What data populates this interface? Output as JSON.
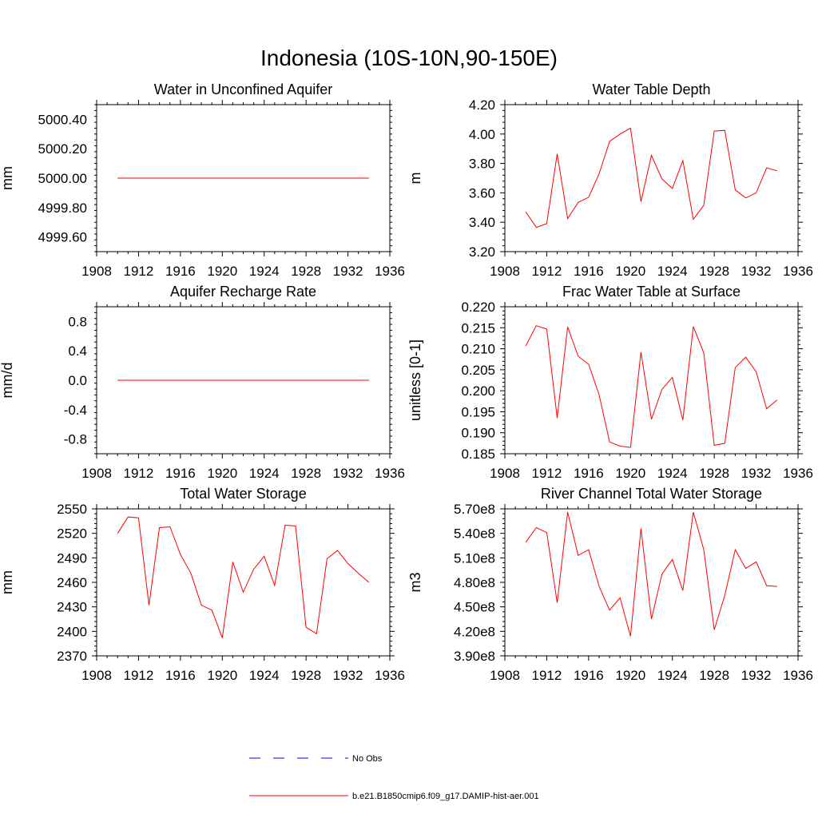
{
  "figure_title": "Indonesia (10S-10N,90-150E)",
  "legend": {
    "items": [
      {
        "label": "No Obs",
        "color": "#0000ff",
        "dashed": true
      },
      {
        "label": "b.e21.B1850cmip6.f09_g17.DAMIP-hist-aer.001",
        "color": "#ff0000",
        "dashed": false
      }
    ]
  },
  "chart_data": [
    {
      "type": "line",
      "title": "Water in Unconfined Aquifer",
      "ylabel": "mm",
      "xlim": [
        1908,
        1936
      ],
      "ylim": [
        4999.5,
        5000.5
      ],
      "x_ticks": [
        1908,
        1912,
        1916,
        1920,
        1924,
        1928,
        1932,
        1936
      ],
      "y_ticks": [
        4999.6,
        4999.8,
        5000.0,
        5000.2,
        5000.4
      ],
      "y_tick_labels": [
        "4999.60",
        "4999.80",
        "5000.00",
        "5000.20",
        "5000.40"
      ],
      "series": [
        {
          "color": "#ff0000",
          "x": [
            1910,
            1911,
            1912,
            1913,
            1914,
            1915,
            1916,
            1917,
            1918,
            1919,
            1920,
            1921,
            1922,
            1923,
            1924,
            1925,
            1926,
            1927,
            1928,
            1929,
            1930,
            1931,
            1932,
            1933,
            1934
          ],
          "values": [
            5000,
            5000,
            5000,
            5000,
            5000,
            5000,
            5000,
            5000,
            5000,
            5000,
            5000,
            5000,
            5000,
            5000,
            5000,
            5000,
            5000,
            5000,
            5000,
            5000,
            5000,
            5000,
            5000,
            5000,
            5000
          ]
        }
      ]
    },
    {
      "type": "line",
      "title": "Water Table Depth",
      "ylabel": "m",
      "xlim": [
        1908,
        1936
      ],
      "ylim": [
        3.2,
        4.2
      ],
      "x_ticks": [
        1908,
        1912,
        1916,
        1920,
        1924,
        1928,
        1932,
        1936
      ],
      "y_ticks": [
        3.2,
        3.4,
        3.6,
        3.8,
        4.0,
        4.2
      ],
      "y_tick_labels": [
        "3.20",
        "3.40",
        "3.60",
        "3.80",
        "4.00",
        "4.20"
      ],
      "series": [
        {
          "color": "#ff0000",
          "x": [
            1910,
            1911,
            1912,
            1913,
            1914,
            1915,
            1916,
            1917,
            1918,
            1919,
            1920,
            1921,
            1922,
            1923,
            1924,
            1925,
            1926,
            1927,
            1928,
            1929,
            1930,
            1931,
            1932,
            1933,
            1934
          ],
          "values": [
            3.47,
            3.365,
            3.39,
            3.865,
            3.425,
            3.535,
            3.57,
            3.73,
            3.95,
            4.0,
            4.04,
            3.54,
            3.855,
            3.695,
            3.63,
            3.82,
            3.42,
            3.515,
            4.02,
            4.025,
            3.62,
            3.565,
            3.6,
            3.77,
            3.75
          ]
        }
      ]
    },
    {
      "type": "line",
      "title": "Aquifer Recharge Rate",
      "ylabel": "mm/d",
      "xlim": [
        1908,
        1936
      ],
      "ylim": [
        -1.0,
        1.0
      ],
      "x_ticks": [
        1908,
        1912,
        1916,
        1920,
        1924,
        1928,
        1932,
        1936
      ],
      "y_ticks": [
        -0.8,
        -0.4,
        0.0,
        0.4,
        0.8
      ],
      "y_tick_labels": [
        "-0.8",
        "-0.4",
        "0.0",
        "0.4",
        "0.8"
      ],
      "series": [
        {
          "color": "#ff0000",
          "x": [
            1910,
            1911,
            1912,
            1913,
            1914,
            1915,
            1916,
            1917,
            1918,
            1919,
            1920,
            1921,
            1922,
            1923,
            1924,
            1925,
            1926,
            1927,
            1928,
            1929,
            1930,
            1931,
            1932,
            1933,
            1934
          ],
          "values": [
            0,
            0,
            0,
            0,
            0,
            0,
            0,
            0,
            0,
            0,
            0,
            0,
            0,
            0,
            0,
            0,
            0,
            0,
            0,
            0,
            0,
            0,
            0,
            0,
            0
          ]
        }
      ]
    },
    {
      "type": "line",
      "title": "Frac Water Table at Surface",
      "ylabel": "unitless [0-1]",
      "xlim": [
        1908,
        1936
      ],
      "ylim": [
        0.185,
        0.22
      ],
      "x_ticks": [
        1908,
        1912,
        1916,
        1920,
        1924,
        1928,
        1932,
        1936
      ],
      "y_ticks": [
        0.185,
        0.19,
        0.195,
        0.2,
        0.205,
        0.21,
        0.215,
        0.22
      ],
      "y_tick_labels": [
        "0.185",
        "0.190",
        "0.195",
        "0.200",
        "0.205",
        "0.210",
        "0.215",
        "0.220"
      ],
      "series": [
        {
          "color": "#ff0000",
          "x": [
            1910,
            1911,
            1912,
            1913,
            1914,
            1915,
            1916,
            1917,
            1918,
            1919,
            1920,
            1921,
            1922,
            1923,
            1924,
            1925,
            1926,
            1927,
            1928,
            1929,
            1930,
            1931,
            1932,
            1933,
            1934
          ],
          "values": [
            0.2107,
            0.2155,
            0.2147,
            0.1935,
            0.2152,
            0.2082,
            0.2063,
            0.199,
            0.1878,
            0.1868,
            0.1865,
            0.2092,
            0.1932,
            0.2003,
            0.2032,
            0.193,
            0.2153,
            0.209,
            0.187,
            0.1875,
            0.2055,
            0.208,
            0.2045,
            0.1957,
            0.1978
          ]
        }
      ]
    },
    {
      "type": "line",
      "title": "Total Water Storage",
      "ylabel": "mm",
      "xlim": [
        1908,
        1936
      ],
      "ylim": [
        2370,
        2550
      ],
      "x_ticks": [
        1908,
        1912,
        1916,
        1920,
        1924,
        1928,
        1932,
        1936
      ],
      "y_ticks": [
        2370,
        2400,
        2430,
        2460,
        2490,
        2520,
        2550
      ],
      "y_tick_labels": [
        "2370",
        "2400",
        "2430",
        "2460",
        "2490",
        "2520",
        "2550"
      ],
      "series": [
        {
          "color": "#ff0000",
          "x": [
            1910,
            1911,
            1912,
            1913,
            1914,
            1915,
            1916,
            1917,
            1918,
            1919,
            1920,
            1921,
            1922,
            1923,
            1924,
            1925,
            1926,
            1927,
            1928,
            1929,
            1930,
            1931,
            1932,
            1933,
            1934
          ],
          "values": [
            2520,
            2540,
            2539,
            2432,
            2527,
            2528,
            2494,
            2471,
            2432,
            2426,
            2392,
            2485,
            2448,
            2476,
            2492,
            2456,
            2530,
            2529,
            2405,
            2397,
            2489,
            2499,
            2483,
            2471,
            2460
          ]
        }
      ]
    },
    {
      "type": "line",
      "title": "River Channel Total Water Storage",
      "ylabel": "m3",
      "xlim": [
        1908,
        1936
      ],
      "ylim": [
        390000000,
        570000000
      ],
      "x_ticks": [
        1908,
        1912,
        1916,
        1920,
        1924,
        1928,
        1932,
        1936
      ],
      "y_ticks": [
        390000000,
        420000000,
        450000000,
        480000000,
        510000000,
        540000000,
        570000000
      ],
      "y_tick_labels": [
        "3.90e8",
        "4.20e8",
        "4.50e8",
        "4.80e8",
        "5.10e8",
        "5.40e8",
        "5.70e8"
      ],
      "series": [
        {
          "color": "#ff0000",
          "x": [
            1910,
            1911,
            1912,
            1913,
            1914,
            1915,
            1916,
            1917,
            1918,
            1919,
            1920,
            1921,
            1922,
            1923,
            1924,
            1925,
            1926,
            1927,
            1928,
            1929,
            1930,
            1931,
            1932,
            1933,
            1934
          ],
          "values": [
            529000000,
            547000000,
            541000000,
            455000000,
            566000000,
            513000000,
            520000000,
            475000000,
            446000000,
            461000000,
            414000000,
            546000000,
            435000000,
            490000000,
            508000000,
            470000000,
            566000000,
            520000000,
            422000000,
            464000000,
            520000000,
            497000000,
            505000000,
            476000000,
            475000000
          ]
        }
      ]
    }
  ]
}
